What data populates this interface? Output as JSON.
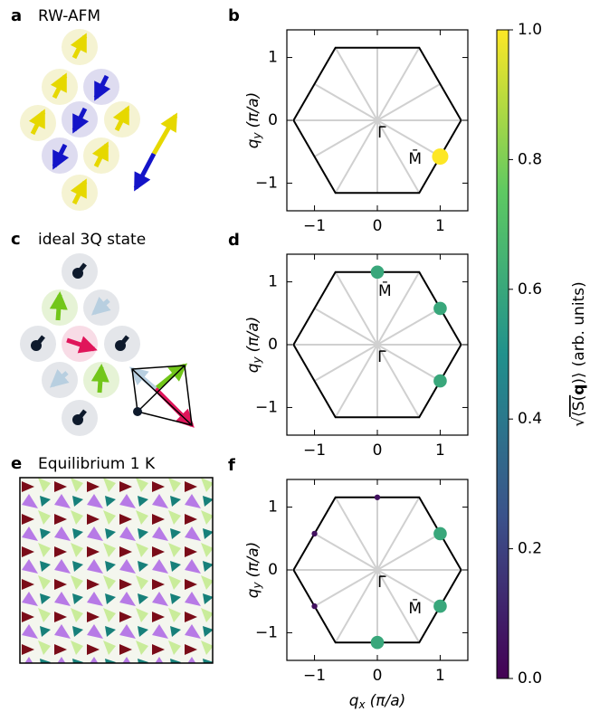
{
  "illustrations": [
    {
      "label": "a",
      "title": "RW-AFM"
    },
    {
      "label": "c",
      "title": "ideal 3Q state"
    },
    {
      "label": "e",
      "title": "Equilibrium 1 K"
    }
  ],
  "chart_data": [
    {
      "type": "scatter",
      "panel": "b",
      "colormap": "viridis",
      "x": [
        1
      ],
      "y": [
        -0.577
      ],
      "intensity": [
        1.0
      ],
      "annotations": [
        "Γ̄",
        "M̄"
      ],
      "xlim": [
        -1.44,
        1.44
      ],
      "ylim": [
        -1.44,
        1.44
      ],
      "xticks": [
        {
          "value": -1,
          "label": "−1"
        },
        0,
        1
      ],
      "yticks": [
        {
          "value": -1,
          "label": "−1"
        },
        0,
        1
      ],
      "ylabel": {
        "symbol": "q",
        "sub": "y",
        "unit": "(π/a)"
      }
    },
    {
      "type": "scatter",
      "panel": "d",
      "colormap": "viridis",
      "x": [
        0,
        1,
        1
      ],
      "y": [
        1.155,
        0.577,
        -0.577
      ],
      "intensity": [
        0.6,
        0.6,
        0.6
      ],
      "annotations": [
        "Γ̄",
        "M̄"
      ],
      "xlim": [
        -1.44,
        1.44
      ],
      "ylim": [
        -1.44,
        1.44
      ],
      "xticks": [
        {
          "value": -1,
          "label": "−1"
        },
        0,
        1
      ],
      "yticks": [
        {
          "value": -1,
          "label": "−1"
        },
        0,
        1
      ],
      "ylabel": {
        "symbol": "q",
        "sub": "y",
        "unit": "(π/a)"
      }
    },
    {
      "type": "scatter",
      "panel": "f",
      "colormap": "viridis",
      "x": [
        0,
        1,
        1,
        0,
        -1,
        -1
      ],
      "y": [
        1.155,
        0.577,
        -0.577,
        -1.155,
        0.577,
        -0.577
      ],
      "intensity": [
        0.05,
        0.6,
        0.6,
        0.6,
        0.05,
        0.05
      ],
      "annotations": [
        "Γ̄",
        "M̄"
      ],
      "xlim": [
        -1.44,
        1.44
      ],
      "ylim": [
        -1.44,
        1.44
      ],
      "xticks": [
        {
          "value": -1,
          "label": "−1"
        },
        0,
        1
      ],
      "yticks": [
        {
          "value": -1,
          "label": "−1"
        },
        0,
        1
      ],
      "xlabel": {
        "symbol": "q",
        "sub": "x",
        "unit": "(π/a)"
      },
      "ylabel": {
        "symbol": "q",
        "sub": "y",
        "unit": "(π/a)"
      }
    }
  ],
  "colorbar": {
    "colormap": "viridis",
    "lim": [
      0,
      1
    ],
    "ticks": [
      {
        "value": 0,
        "label": "0.0"
      },
      {
        "value": 0.2,
        "label": "0.2"
      },
      {
        "value": 0.4,
        "label": "0.4"
      },
      {
        "value": 0.6,
        "label": "0.6"
      },
      {
        "value": 0.8,
        "label": "0.8"
      },
      {
        "value": 1,
        "label": "1.0"
      }
    ],
    "label": {
      "root": "√",
      "quantity": "⟨S(",
      "bold": "q",
      "close": ")⟩",
      "unit": "(arb. units)"
    }
  }
}
